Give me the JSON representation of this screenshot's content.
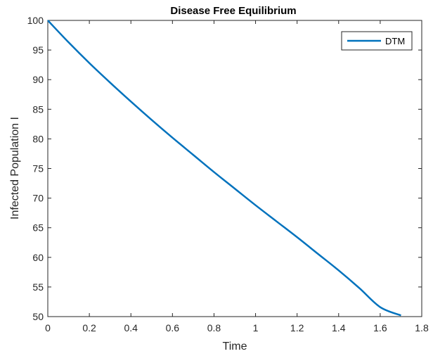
{
  "chart_data": {
    "type": "line",
    "title": "Disease Free Equilibrium",
    "xlabel": "Time",
    "ylabel": "Infected Population I",
    "xlim": [
      0,
      1.8
    ],
    "ylim": [
      50,
      100
    ],
    "xticks": [
      0,
      0.2,
      0.4,
      0.6,
      0.8,
      1,
      1.2,
      1.4,
      1.6,
      1.8
    ],
    "xtick_labels": [
      "0",
      "0.2",
      "0.4",
      "0.6",
      "0.8",
      "1",
      "1.2",
      "1.4",
      "1.6",
      "1.8"
    ],
    "yticks": [
      50,
      55,
      60,
      65,
      70,
      75,
      80,
      85,
      90,
      95,
      100
    ],
    "ytick_labels": [
      "50",
      "55",
      "60",
      "65",
      "70",
      "75",
      "80",
      "85",
      "90",
      "95",
      "100"
    ],
    "grid": false,
    "legend_position": "top-right",
    "series": [
      {
        "name": "DTM",
        "color": "#0072BD",
        "x": [
          0,
          0.1,
          0.2,
          0.3,
          0.4,
          0.5,
          0.6,
          0.7,
          0.8,
          0.9,
          1.0,
          1.1,
          1.2,
          1.3,
          1.4,
          1.5,
          1.6,
          1.7
        ],
        "y": [
          100,
          96.3,
          92.8,
          89.5,
          86.3,
          83.2,
          80.2,
          77.3,
          74.4,
          71.6,
          68.8,
          66.1,
          63.4,
          60.6,
          57.8,
          54.8,
          51.6,
          50.2
        ]
      }
    ]
  }
}
